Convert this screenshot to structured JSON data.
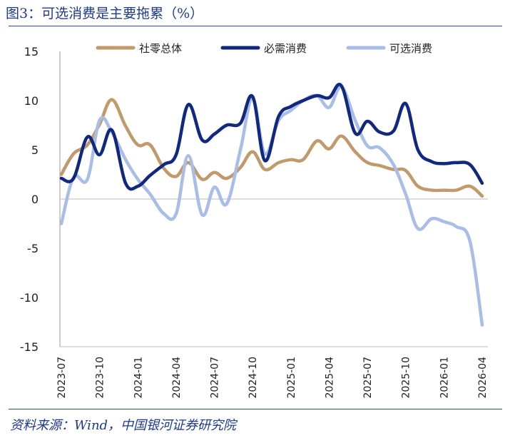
{
  "title": "图3：可选消费是主要拖累（%）",
  "source": "资料来源：Wind，中国银河证券研究院",
  "chart_data": {
    "type": "line",
    "xlabel": "",
    "ylabel": "",
    "ylim": [
      -15,
      15
    ],
    "yticks": [
      "15",
      "10",
      "5",
      "0",
      "-5",
      "-10",
      "-15"
    ],
    "ytick_values": [
      15,
      10,
      5,
      0,
      -5,
      -10,
      -15
    ],
    "xticks": [
      "2023-07",
      "2023-10",
      "2024-01",
      "2024-04",
      "2024-07",
      "2024-10",
      "2025-01",
      "2025-04",
      "2025-07",
      "2025-10",
      "2026-01",
      "2026-04"
    ],
    "months": [
      "2023-07",
      "2023-08",
      "2023-09",
      "2023-10",
      "2023-11",
      "2023-12",
      "2024-01",
      "2024-02",
      "2024-03",
      "2024-04",
      "2024-05",
      "2024-06",
      "2024-07",
      "2024-08",
      "2024-09",
      "2024-10",
      "2024-11",
      "2024-12",
      "2025-01",
      "2025-02",
      "2025-03",
      "2025-04",
      "2025-05",
      "2025-06",
      "2025-07",
      "2025-08",
      "2025-09",
      "2025-10",
      "2025-11",
      "2025-12",
      "2026-01",
      "2026-02",
      "2026-03",
      "2026-04"
    ],
    "grid": false,
    "legend_position": "top",
    "series": [
      {
        "name": "社零总体",
        "color": "#c09a6b",
        "values": [
          [
            2023.5,
            2.5
          ],
          [
            2023.58,
            4.6
          ],
          [
            2023.67,
            5.5
          ],
          [
            2023.75,
            7.6
          ],
          [
            2023.83,
            10.1
          ],
          [
            2023.92,
            7.4
          ],
          [
            2024.0,
            5.5
          ],
          [
            2024.08,
            5.5
          ],
          [
            2024.17,
            3.1
          ],
          [
            2024.25,
            2.3
          ],
          [
            2024.33,
            3.7
          ],
          [
            2024.42,
            2.0
          ],
          [
            2024.5,
            2.7
          ],
          [
            2024.58,
            2.1
          ],
          [
            2024.67,
            3.2
          ],
          [
            2024.75,
            4.8
          ],
          [
            2024.83,
            3.0
          ],
          [
            2024.92,
            3.7
          ],
          [
            2025.0,
            4.0
          ],
          [
            2025.08,
            4.0
          ],
          [
            2025.17,
            5.9
          ],
          [
            2025.25,
            5.1
          ],
          [
            2025.33,
            6.4
          ],
          [
            2025.42,
            4.8
          ],
          [
            2025.5,
            3.7
          ],
          [
            2025.58,
            3.4
          ],
          [
            2025.67,
            3.0
          ],
          [
            2025.75,
            2.9
          ],
          [
            2025.83,
            1.3
          ],
          [
            2025.92,
            0.9
          ],
          [
            2026.0,
            0.9
          ],
          [
            2026.08,
            0.9
          ],
          [
            2026.17,
            1.3
          ],
          [
            2026.25,
            0.3
          ]
        ]
      },
      {
        "name": "必需消费",
        "color": "#10287e",
        "values": [
          [
            2023.5,
            2.1
          ],
          [
            2023.58,
            2.1
          ],
          [
            2023.67,
            6.3
          ],
          [
            2023.75,
            4.5
          ],
          [
            2023.83,
            7.0
          ],
          [
            2023.92,
            1.6
          ],
          [
            2024.0,
            1.3
          ],
          [
            2024.08,
            2.4
          ],
          [
            2024.17,
            3.5
          ],
          [
            2024.25,
            4.5
          ],
          [
            2024.33,
            9.6
          ],
          [
            2024.42,
            6.0
          ],
          [
            2024.5,
            6.6
          ],
          [
            2024.58,
            7.5
          ],
          [
            2024.67,
            7.7
          ],
          [
            2024.75,
            10.4
          ],
          [
            2024.83,
            3.9
          ],
          [
            2024.92,
            8.4
          ],
          [
            2025.0,
            9.4
          ],
          [
            2025.08,
            10.0
          ],
          [
            2025.17,
            10.5
          ],
          [
            2025.25,
            10.3
          ],
          [
            2025.33,
            11.5
          ],
          [
            2025.42,
            6.7
          ],
          [
            2025.5,
            7.9
          ],
          [
            2025.58,
            6.8
          ],
          [
            2025.67,
            6.9
          ],
          [
            2025.75,
            9.7
          ],
          [
            2025.83,
            5.0
          ],
          [
            2025.92,
            3.8
          ],
          [
            2026.0,
            3.6
          ],
          [
            2026.08,
            3.7
          ],
          [
            2026.17,
            3.5
          ],
          [
            2026.25,
            1.6
          ]
        ]
      },
      {
        "name": "可选消费",
        "color": "#a9bde6",
        "values": [
          [
            2023.5,
            -2.5
          ],
          [
            2023.58,
            2.2
          ],
          [
            2023.67,
            2.0
          ],
          [
            2023.75,
            8.0
          ],
          [
            2023.83,
            6.8
          ],
          [
            2023.92,
            4.0
          ],
          [
            2024.0,
            2.0
          ],
          [
            2024.08,
            0.5
          ],
          [
            2024.17,
            -1.5
          ],
          [
            2024.25,
            -1.5
          ],
          [
            2024.33,
            4.4
          ],
          [
            2024.42,
            -1.6
          ],
          [
            2024.5,
            1.2
          ],
          [
            2024.58,
            -0.5
          ],
          [
            2024.67,
            5.0
          ],
          [
            2024.75,
            10.2
          ],
          [
            2024.83,
            4.6
          ],
          [
            2024.92,
            8.0
          ],
          [
            2025.0,
            9.0
          ],
          [
            2025.08,
            10.0
          ],
          [
            2025.17,
            10.5
          ],
          [
            2025.25,
            9.3
          ],
          [
            2025.33,
            11.4
          ],
          [
            2025.42,
            8.0
          ],
          [
            2025.5,
            5.4
          ],
          [
            2025.58,
            5.2
          ],
          [
            2025.67,
            3.5
          ],
          [
            2025.75,
            0.5
          ],
          [
            2025.83,
            -3.0
          ],
          [
            2025.92,
            -2.0
          ],
          [
            2026.0,
            -2.3
          ],
          [
            2026.08,
            -2.8
          ],
          [
            2026.17,
            -4.3
          ],
          [
            2026.25,
            -12.8
          ]
        ]
      }
    ]
  }
}
